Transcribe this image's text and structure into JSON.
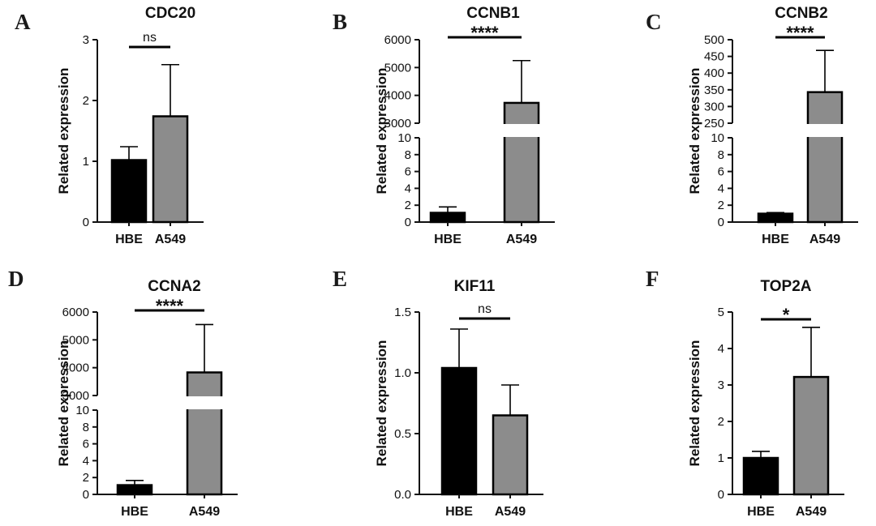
{
  "figure": {
    "panel_letters": [
      "A",
      "B",
      "C",
      "D",
      "E",
      "F"
    ]
  },
  "colors": {
    "hbe_bar": "#000000",
    "a549_bar": "#8c8c8c",
    "axis": "#111111"
  },
  "chart_data": [
    {
      "panel": "A",
      "type": "bar",
      "title": "CDC20",
      "ylabel": "Related expression",
      "xlabel": "",
      "categories": [
        "HBE",
        "A549"
      ],
      "values": [
        1.02,
        1.74
      ],
      "errors": [
        0.22,
        0.85
      ],
      "colors": [
        "#000000",
        "#8c8c8c"
      ],
      "ylim": [
        0,
        3
      ],
      "yticks": [
        0,
        1,
        2,
        3
      ],
      "ytick_labels": [
        "0",
        "1",
        "2",
        "3"
      ],
      "significance": "ns"
    },
    {
      "panel": "B",
      "type": "bar",
      "title": "CCNB1",
      "ylabel": "Related expression",
      "xlabel": "",
      "categories": [
        "HBE",
        "A549"
      ],
      "values": [
        1.1,
        3730
      ],
      "errors": [
        0.7,
        1520
      ],
      "colors": [
        "#000000",
        "#8c8c8c"
      ],
      "broken_axis": true,
      "lower_ylim": [
        0,
        10
      ],
      "lower_yticks": [
        0,
        2,
        4,
        6,
        8,
        10
      ],
      "lower_ytick_labels": [
        "0",
        "2",
        "4",
        "6",
        "8",
        "10"
      ],
      "upper_ylim": [
        3000,
        6000
      ],
      "upper_yticks": [
        3000,
        4000,
        5000,
        6000
      ],
      "upper_ytick_labels": [
        "3000",
        "4000",
        "5000",
        "6000"
      ],
      "significance": "****"
    },
    {
      "panel": "C",
      "type": "bar",
      "title": "CCNB2",
      "ylabel": "Related expression",
      "xlabel": "",
      "categories": [
        "HBE",
        "A549"
      ],
      "values": [
        1.0,
        343
      ],
      "errors": [
        0.12,
        125
      ],
      "colors": [
        "#000000",
        "#8c8c8c"
      ],
      "broken_axis": true,
      "lower_ylim": [
        0,
        10
      ],
      "lower_yticks": [
        0,
        2,
        4,
        6,
        8,
        10
      ],
      "lower_ytick_labels": [
        "0",
        "2",
        "4",
        "6",
        "8",
        "10"
      ],
      "upper_ylim": [
        250,
        500
      ],
      "upper_yticks": [
        250,
        300,
        350,
        400,
        450,
        500
      ],
      "upper_ytick_labels": [
        "250",
        "300",
        "350",
        "400",
        "450",
        "500"
      ],
      "significance": "****"
    },
    {
      "panel": "D",
      "type": "bar",
      "title": "CCNA2",
      "ylabel": "Related expression",
      "xlabel": "",
      "categories": [
        "HBE",
        "A549"
      ],
      "values": [
        1.1,
        3830
      ],
      "errors": [
        0.55,
        1720
      ],
      "colors": [
        "#000000",
        "#8c8c8c"
      ],
      "broken_axis": true,
      "lower_ylim": [
        0,
        10
      ],
      "lower_yticks": [
        0,
        2,
        4,
        6,
        8,
        10
      ],
      "lower_ytick_labels": [
        "0",
        "2",
        "4",
        "6",
        "8",
        "10"
      ],
      "upper_ylim": [
        3000,
        6000
      ],
      "upper_yticks": [
        3000,
        4000,
        5000,
        6000
      ],
      "upper_ytick_labels": [
        "3000",
        "4000",
        "5000",
        "6000"
      ],
      "significance": "****"
    },
    {
      "panel": "E",
      "type": "bar",
      "title": "KIF11",
      "ylabel": "Related expression",
      "xlabel": "",
      "categories": [
        "HBE",
        "A549"
      ],
      "values": [
        1.04,
        0.65
      ],
      "errors": [
        0.32,
        0.25
      ],
      "colors": [
        "#000000",
        "#8c8c8c"
      ],
      "ylim": [
        0,
        1.5
      ],
      "yticks": [
        0,
        0.5,
        1.0,
        1.5
      ],
      "ytick_labels": [
        "0.0",
        "0.5",
        "1.0",
        "1.5"
      ],
      "significance": "ns"
    },
    {
      "panel": "F",
      "type": "bar",
      "title": "TOP2A",
      "ylabel": "Related expression",
      "xlabel": "",
      "categories": [
        "HBE",
        "A549"
      ],
      "values": [
        1.0,
        3.22
      ],
      "errors": [
        0.18,
        1.36
      ],
      "colors": [
        "#000000",
        "#8c8c8c"
      ],
      "ylim": [
        0,
        5
      ],
      "yticks": [
        0,
        1,
        2,
        3,
        4,
        5
      ],
      "ytick_labels": [
        "0",
        "1",
        "2",
        "3",
        "4",
        "5"
      ],
      "significance": "*"
    }
  ]
}
